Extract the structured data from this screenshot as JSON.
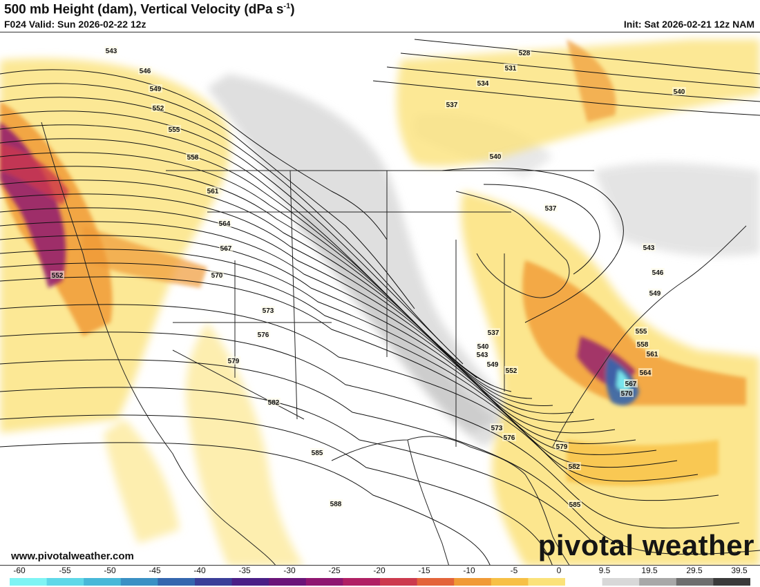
{
  "header": {
    "title": "500 mb Height (dam), Vertical Velocity (dPa s",
    "title_unit_exponent": "-1",
    "title_close": ")",
    "valid": "F024 Valid: Sun 2026-02-22 12z",
    "init": "Init: Sat 2026-02-21 12z NAM"
  },
  "footer": {
    "website": "www.pivotalweather.com",
    "brand": "pivotal weather"
  },
  "colorbar": {
    "ticks": [
      "-60",
      "-55",
      "-50",
      "-45",
      "-40",
      "-35",
      "-30",
      "-25",
      "-20",
      "-15",
      "-10",
      "-5",
      "0",
      "9.5",
      "19.5",
      "29.5",
      "39.5"
    ],
    "colors": [
      "#7ff4f4",
      "#5fd8e8",
      "#48b8d8",
      "#3a90c4",
      "#3466ae",
      "#3a3e98",
      "#4a1f86",
      "#6a1478",
      "#8f1670",
      "#b02064",
      "#cc3a4e",
      "#e3643a",
      "#f09a36",
      "#f7c046",
      "#fbe27a",
      "#ffffff",
      "#d8d8d8",
      "#a8a8a8",
      "#6e6e6e",
      "#3a3a3a"
    ]
  },
  "contours": [
    {
      "label": "543"
    },
    {
      "label": "546"
    },
    {
      "label": "549"
    },
    {
      "label": "552"
    },
    {
      "label": "555"
    },
    {
      "label": "558"
    },
    {
      "label": "561"
    },
    {
      "label": "564"
    },
    {
      "label": "567"
    },
    {
      "label": "570"
    },
    {
      "label": "573"
    },
    {
      "label": "576"
    },
    {
      "label": "579"
    },
    {
      "label": "582"
    },
    {
      "label": "585"
    },
    {
      "label": "588"
    },
    {
      "label": "528"
    },
    {
      "label": "531"
    },
    {
      "label": "534"
    },
    {
      "label": "537"
    },
    {
      "label": "540"
    },
    {
      "label": "540"
    },
    {
      "label": "537"
    },
    {
      "label": "543"
    },
    {
      "label": "546"
    },
    {
      "label": "549"
    },
    {
      "label": "555"
    },
    {
      "label": "558"
    },
    {
      "label": "561"
    },
    {
      "label": "564"
    },
    {
      "label": "567"
    },
    {
      "label": "570"
    },
    {
      "label": "552"
    },
    {
      "label": "573"
    },
    {
      "label": "576"
    },
    {
      "label": "579"
    },
    {
      "label": "582"
    },
    {
      "label": "585"
    },
    {
      "label": "537"
    },
    {
      "label": "540"
    },
    {
      "label": "543"
    },
    {
      "label": "549"
    },
    {
      "label": "552"
    }
  ]
}
